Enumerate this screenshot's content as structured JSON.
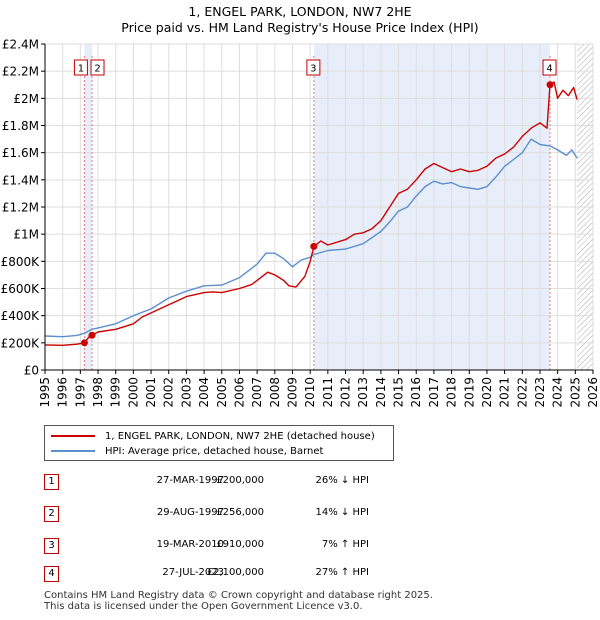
{
  "chart_data": {
    "type": "line",
    "title": "1, ENGEL PARK, LONDON, NW7 2HE",
    "subtitle": "Price paid vs. HM Land Registry's House Price Index (HPI)",
    "xlim": [
      1995,
      2026
    ],
    "ylim": [
      0,
      2400000
    ],
    "x_ticks": [
      1995,
      1996,
      1997,
      1998,
      1999,
      2000,
      2001,
      2002,
      2003,
      2004,
      2005,
      2006,
      2007,
      2008,
      2009,
      2010,
      2011,
      2012,
      2013,
      2014,
      2015,
      2016,
      2017,
      2018,
      2019,
      2020,
      2021,
      2022,
      2023,
      2024,
      2025,
      2026
    ],
    "y_ticks": [
      {
        "value": 0,
        "label": "£0"
      },
      {
        "value": 200000,
        "label": "£200K"
      },
      {
        "value": 400000,
        "label": "£400K"
      },
      {
        "value": 600000,
        "label": "£600K"
      },
      {
        "value": 800000,
        "label": "£800K"
      },
      {
        "value": 1000000,
        "label": "£1M"
      },
      {
        "value": 1200000,
        "label": "£1.2M"
      },
      {
        "value": 1400000,
        "label": "£1.4M"
      },
      {
        "value": 1600000,
        "label": "£1.6M"
      },
      {
        "value": 1800000,
        "label": "£1.8M"
      },
      {
        "value": 2000000,
        "label": "£2M"
      },
      {
        "value": 2200000,
        "label": "£2.2M"
      },
      {
        "value": 2400000,
        "label": "£2.4M"
      }
    ],
    "grid": true,
    "future_hatch_from": 2025.1,
    "shaded_periods": [
      {
        "from": 1997.23,
        "to": 1997.66
      },
      {
        "from": 2010.21,
        "to": 2023.57
      }
    ],
    "series": [
      {
        "name": "1, ENGEL PARK, LONDON, NW7 2HE (detached house)",
        "color": "#cc0000",
        "points": [
          [
            1995.0,
            185000
          ],
          [
            1996.0,
            182000
          ],
          [
            1996.8,
            190000
          ],
          [
            1997.23,
            200000
          ],
          [
            1997.5,
            245000
          ],
          [
            1997.66,
            256000
          ],
          [
            1998.0,
            280000
          ],
          [
            1999.0,
            300000
          ],
          [
            2000.0,
            340000
          ],
          [
            2000.5,
            390000
          ],
          [
            2001.0,
            420000
          ],
          [
            2002.0,
            480000
          ],
          [
            2002.5,
            510000
          ],
          [
            2003.0,
            540000
          ],
          [
            2004.0,
            570000
          ],
          [
            2004.5,
            575000
          ],
          [
            2005.0,
            570000
          ],
          [
            2006.0,
            600000
          ],
          [
            2006.7,
            630000
          ],
          [
            2007.0,
            660000
          ],
          [
            2007.6,
            720000
          ],
          [
            2008.0,
            700000
          ],
          [
            2008.5,
            660000
          ],
          [
            2008.8,
            620000
          ],
          [
            2009.2,
            610000
          ],
          [
            2009.7,
            690000
          ],
          [
            2010.0,
            800000
          ],
          [
            2010.21,
            910000
          ],
          [
            2010.6,
            950000
          ],
          [
            2011.0,
            920000
          ],
          [
            2012.0,
            960000
          ],
          [
            2012.5,
            1000000
          ],
          [
            2013.0,
            1010000
          ],
          [
            2013.5,
            1040000
          ],
          [
            2014.0,
            1100000
          ],
          [
            2014.5,
            1200000
          ],
          [
            2015.0,
            1300000
          ],
          [
            2015.5,
            1330000
          ],
          [
            2016.0,
            1400000
          ],
          [
            2016.5,
            1480000
          ],
          [
            2017.0,
            1520000
          ],
          [
            2017.5,
            1490000
          ],
          [
            2018.0,
            1460000
          ],
          [
            2018.5,
            1480000
          ],
          [
            2019.0,
            1460000
          ],
          [
            2019.5,
            1470000
          ],
          [
            2020.0,
            1500000
          ],
          [
            2020.5,
            1560000
          ],
          [
            2021.0,
            1590000
          ],
          [
            2021.5,
            1640000
          ],
          [
            2022.0,
            1720000
          ],
          [
            2022.5,
            1780000
          ],
          [
            2023.0,
            1820000
          ],
          [
            2023.4,
            1780000
          ],
          [
            2023.57,
            2100000
          ],
          [
            2023.8,
            2120000
          ],
          [
            2024.0,
            2000000
          ],
          [
            2024.3,
            2060000
          ],
          [
            2024.6,
            2020000
          ],
          [
            2024.9,
            2080000
          ],
          [
            2025.1,
            1990000
          ]
        ]
      },
      {
        "name": "HPI: Average price, detached house, Barnet",
        "color": "#5b8fd0",
        "points": [
          [
            1995.0,
            250000
          ],
          [
            1996.0,
            245000
          ],
          [
            1996.8,
            255000
          ],
          [
            1997.23,
            270000
          ],
          [
            1997.66,
            300000
          ],
          [
            1998.0,
            310000
          ],
          [
            1999.0,
            340000
          ],
          [
            2000.0,
            400000
          ],
          [
            2001.0,
            450000
          ],
          [
            2002.0,
            530000
          ],
          [
            2003.0,
            580000
          ],
          [
            2004.0,
            620000
          ],
          [
            2005.0,
            625000
          ],
          [
            2006.0,
            680000
          ],
          [
            2007.0,
            780000
          ],
          [
            2007.5,
            860000
          ],
          [
            2008.0,
            860000
          ],
          [
            2008.5,
            820000
          ],
          [
            2009.0,
            760000
          ],
          [
            2009.5,
            810000
          ],
          [
            2010.0,
            830000
          ],
          [
            2010.21,
            850000
          ],
          [
            2011.0,
            880000
          ],
          [
            2012.0,
            890000
          ],
          [
            2013.0,
            930000
          ],
          [
            2014.0,
            1020000
          ],
          [
            2014.5,
            1090000
          ],
          [
            2015.0,
            1170000
          ],
          [
            2015.5,
            1200000
          ],
          [
            2016.0,
            1280000
          ],
          [
            2016.5,
            1350000
          ],
          [
            2017.0,
            1390000
          ],
          [
            2017.5,
            1370000
          ],
          [
            2018.0,
            1380000
          ],
          [
            2018.5,
            1350000
          ],
          [
            2019.0,
            1340000
          ],
          [
            2019.5,
            1330000
          ],
          [
            2020.0,
            1350000
          ],
          [
            2020.5,
            1420000
          ],
          [
            2021.0,
            1500000
          ],
          [
            2021.5,
            1550000
          ],
          [
            2022.0,
            1600000
          ],
          [
            2022.5,
            1700000
          ],
          [
            2023.0,
            1660000
          ],
          [
            2023.57,
            1650000
          ],
          [
            2024.0,
            1620000
          ],
          [
            2024.5,
            1580000
          ],
          [
            2024.8,
            1620000
          ],
          [
            2025.1,
            1560000
          ]
        ]
      }
    ],
    "markers": [
      {
        "label": "1",
        "x": 1997.23,
        "y": 200000
      },
      {
        "label": "2",
        "x": 1997.66,
        "y": 256000
      },
      {
        "label": "3",
        "x": 2010.21,
        "y": 910000
      },
      {
        "label": "4",
        "x": 2023.57,
        "y": 2100000
      }
    ]
  },
  "legend": {
    "series1": "1, ENGEL PARK, LONDON, NW7 2HE (detached house)",
    "series2": "HPI: Average price, detached house, Barnet"
  },
  "transactions": [
    {
      "num": "1",
      "date": "27-MAR-1997",
      "price": "£200,000",
      "hpi": "26% ↓ HPI"
    },
    {
      "num": "2",
      "date": "29-AUG-1997",
      "price": "£256,000",
      "hpi": "14% ↓ HPI"
    },
    {
      "num": "3",
      "date": "19-MAR-2010",
      "price": "£910,000",
      "hpi": "7% ↑ HPI"
    },
    {
      "num": "4",
      "date": "27-JUL-2023",
      "price": "£2,100,000",
      "hpi": "27% ↑ HPI"
    }
  ],
  "footer": {
    "line1": "Contains HM Land Registry data © Crown copyright and database right 2025.",
    "line2": "This data is licensed under the Open Government Licence v3.0."
  }
}
